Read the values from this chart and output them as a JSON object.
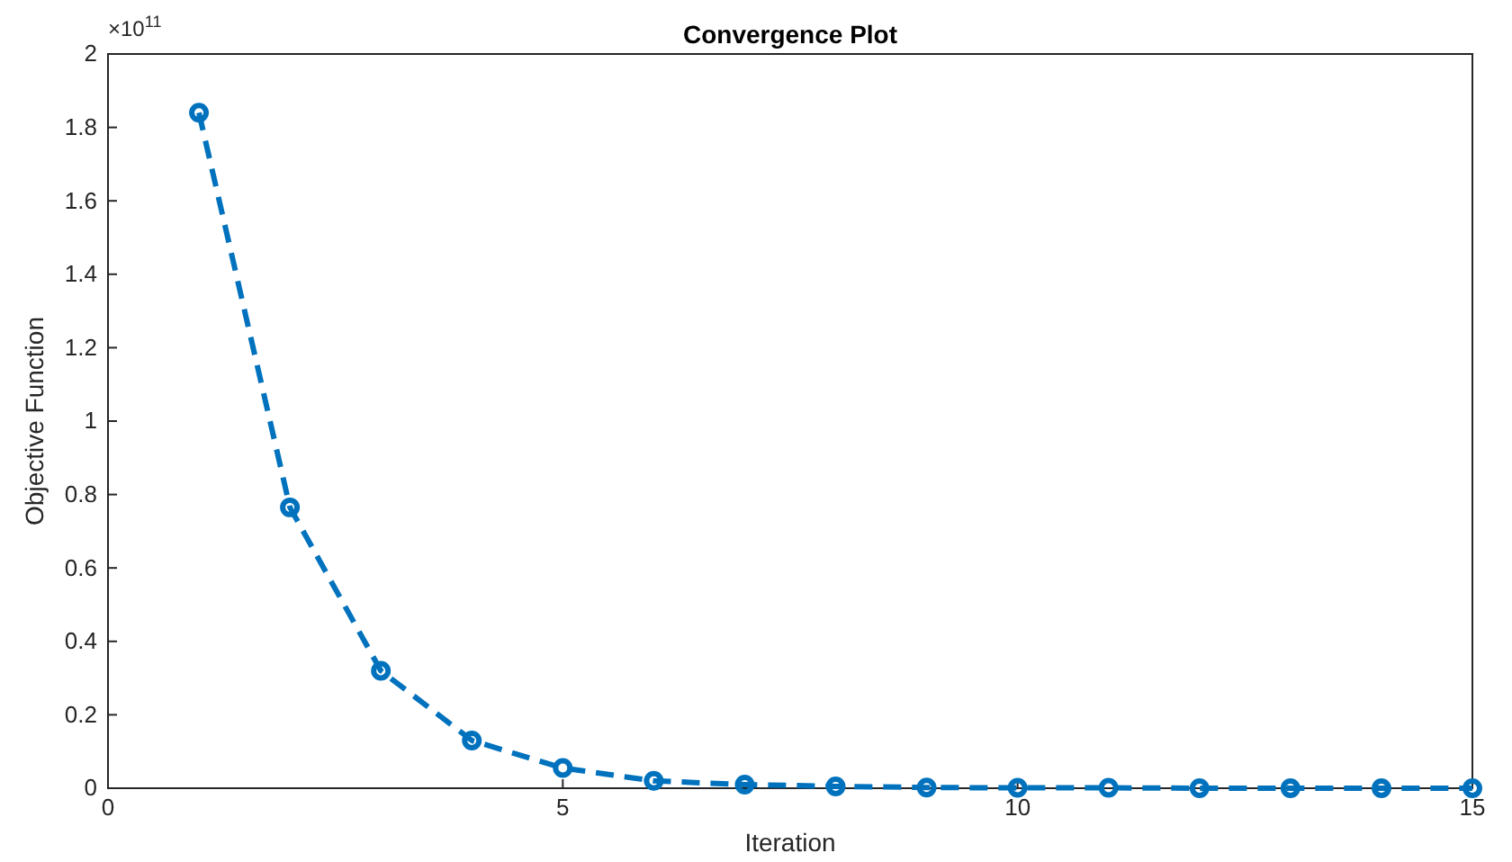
{
  "chart_data": {
    "type": "line",
    "title": "Convergence Plot",
    "xlabel": "Iteration",
    "ylabel": "Objective Function",
    "annotations": [
      "×10$^{11}$"
    ],
    "x": [
      1,
      2,
      3,
      4,
      5,
      6,
      7,
      8,
      9,
      10,
      11,
      12,
      13,
      14,
      15
    ],
    "series": [
      {
        "color": "#0072bd",
        "values": [
          1.84,
          0.765,
          0.32,
          0.13,
          0.055,
          0.02,
          0.01,
          0.005,
          0.002,
          0.001,
          0.001,
          0,
          0,
          0,
          0
        ]
      }
    ],
    "xlim": [
      0,
      15
    ],
    "xticks": [
      0,
      5,
      10,
      15
    ],
    "ylim": [
      0,
      2
    ],
    "yticks": [
      0,
      0.2,
      0.4,
      0.6,
      0.8,
      1,
      1.2,
      1.4,
      1.6,
      1.8,
      2
    ],
    "grid": false,
    "marker": "circle",
    "line_style": "dashed"
  }
}
